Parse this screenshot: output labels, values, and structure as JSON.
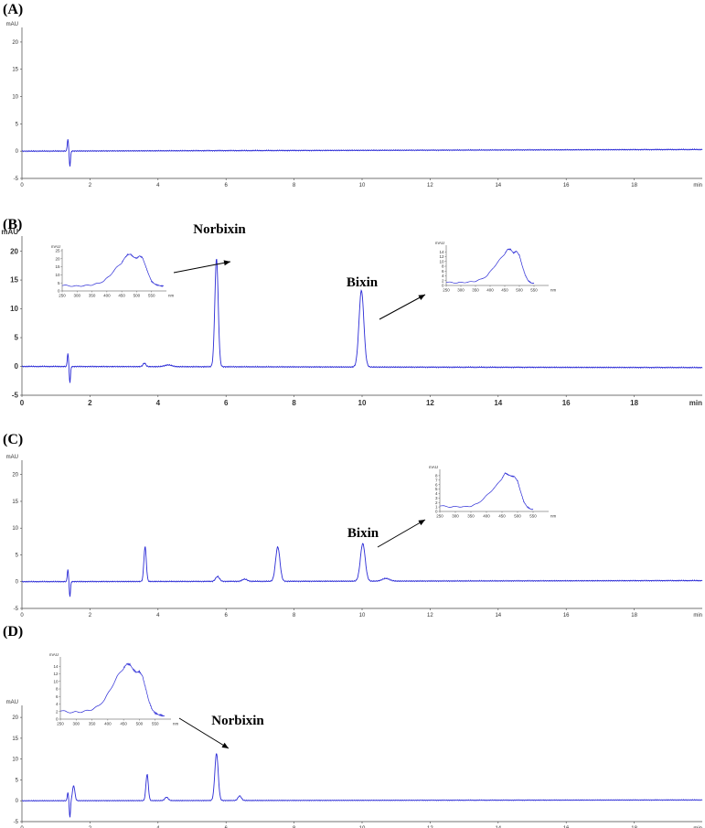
{
  "colors": {
    "trace": "#2b2bd6",
    "axis": "#444444",
    "text": "#000000"
  },
  "chart_data": [
    {
      "type": "line",
      "panel": "(A)",
      "xlabel": "min",
      "ylabel": "mAU",
      "xlim": [
        0,
        20
      ],
      "ylim": [
        -5,
        22
      ],
      "xticks": [
        0,
        2,
        4,
        6,
        8,
        10,
        12,
        14,
        16,
        18
      ],
      "yticks": [
        -5,
        0,
        5,
        10,
        15,
        20
      ],
      "peaks": [],
      "baseline": [
        [
          0,
          0
        ],
        [
          20,
          0.3
        ]
      ],
      "solvent_front": {
        "x": 1.35,
        "up": 2.2,
        "down": -2.8
      },
      "annotations": [],
      "insets": []
    },
    {
      "type": "line",
      "panel": "(B)",
      "xlabel": "min",
      "ylabel": "mAU",
      "xlim": [
        0,
        20
      ],
      "ylim": [
        -5,
        22
      ],
      "xticks": [
        0,
        2,
        4,
        6,
        8,
        10,
        12,
        14,
        16,
        18
      ],
      "yticks": [
        -5,
        0,
        5,
        10,
        15,
        20
      ],
      "baseline": [
        [
          0,
          0
        ],
        [
          20,
          -0.2
        ]
      ],
      "solvent_front": {
        "x": 1.35,
        "up": 2.3,
        "down": -2.8
      },
      "peaks": [
        {
          "rt": 3.6,
          "height": 0.6,
          "width": 0.06
        },
        {
          "rt": 4.3,
          "height": 0.3,
          "width": 0.15
        },
        {
          "rt": 5.72,
          "height": 18.8,
          "width": 0.07
        },
        {
          "rt": 9.98,
          "height": 13.3,
          "width": 0.1
        }
      ],
      "annotations": [
        {
          "text": "Norbixin",
          "x": 5.72,
          "y": 19.8
        },
        {
          "text": "Bixin",
          "x": 9.98,
          "y": 14.3
        }
      ],
      "insets": [
        {
          "type": "line",
          "xlabel": "nm",
          "ylabel": "mAU",
          "xlim": [
            250,
            600
          ],
          "ylim": [
            0,
            25
          ],
          "xticks": [
            250,
            300,
            350,
            400,
            450,
            500,
            550
          ],
          "yticks": [
            0,
            5,
            10,
            15,
            20,
            25
          ],
          "x": [
            250,
            270,
            290,
            310,
            330,
            350,
            370,
            390,
            410,
            430,
            450,
            460,
            470,
            480,
            490,
            500,
            510,
            520,
            530,
            540,
            550,
            560,
            570,
            580,
            590
          ],
          "y": [
            3.6,
            3.2,
            3.0,
            3.1,
            3.3,
            3.8,
            4.6,
            6.2,
            9.5,
            14.0,
            17.5,
            20.5,
            22.6,
            22.8,
            21.0,
            20.3,
            21.8,
            20.6,
            15.5,
            10.5,
            6.0,
            4.4,
            3.6,
            3.2,
            3.0
          ]
        },
        {
          "type": "line",
          "xlabel": "nm",
          "ylabel": "mAU",
          "xlim": [
            250,
            600
          ],
          "ylim": [
            0,
            16
          ],
          "xticks": [
            250,
            300,
            350,
            400,
            450,
            500,
            550
          ],
          "yticks": [
            0,
            2,
            4,
            6,
            8,
            10,
            12,
            14
          ],
          "x": [
            250,
            270,
            290,
            310,
            330,
            350,
            370,
            390,
            410,
            430,
            450,
            460,
            470,
            480,
            490,
            500,
            510,
            520,
            530,
            540,
            550
          ],
          "y": [
            1.4,
            1.2,
            1.1,
            1.3,
            1.4,
            1.8,
            2.6,
            4.1,
            7.2,
            10.3,
            13.2,
            15.1,
            15.0,
            13.5,
            14.3,
            12.5,
            8.1,
            4.3,
            2.0,
            1.1,
            0.8
          ]
        }
      ]
    },
    {
      "type": "line",
      "panel": "(C)",
      "xlabel": "min",
      "ylabel": "mAU",
      "xlim": [
        0,
        20
      ],
      "ylim": [
        -5,
        22
      ],
      "xticks": [
        0,
        2,
        4,
        6,
        8,
        10,
        12,
        14,
        16,
        18
      ],
      "yticks": [
        -5,
        0,
        5,
        10,
        15,
        20
      ],
      "baseline": [
        [
          0,
          0
        ],
        [
          20,
          0.2
        ]
      ],
      "solvent_front": {
        "x": 1.35,
        "up": 2.3,
        "down": -2.8
      },
      "peaks": [
        {
          "rt": 3.62,
          "height": 6.5,
          "width": 0.05
        },
        {
          "rt": 5.75,
          "height": 0.9,
          "width": 0.08
        },
        {
          "rt": 6.55,
          "height": 0.4,
          "width": 0.1
        },
        {
          "rt": 7.52,
          "height": 6.4,
          "width": 0.09
        },
        {
          "rt": 10.02,
          "height": 7.0,
          "width": 0.1
        },
        {
          "rt": 10.7,
          "height": 0.5,
          "width": 0.15
        }
      ],
      "annotations": [
        {
          "text": "Bixin",
          "x": 10.02,
          "y": 8.0
        }
      ],
      "insets": [
        {
          "type": "line",
          "xlabel": "nm",
          "ylabel": "mAU",
          "xlim": [
            250,
            600
          ],
          "ylim": [
            0,
            9
          ],
          "xticks": [
            250,
            300,
            350,
            400,
            450,
            500,
            550
          ],
          "yticks": [
            0,
            1,
            2,
            3,
            4,
            5,
            6,
            7,
            8
          ],
          "x": [
            250,
            270,
            290,
            310,
            330,
            350,
            370,
            390,
            410,
            430,
            450,
            460,
            470,
            480,
            490,
            500,
            510,
            520,
            530,
            540,
            550
          ],
          "y": [
            1.3,
            1.1,
            1.0,
            1.1,
            1.0,
            1.2,
            1.7,
            2.8,
            4.2,
            5.6,
            7.4,
            8.6,
            8.2,
            7.9,
            7.8,
            6.8,
            4.4,
            2.2,
            1.1,
            0.6,
            0.4
          ]
        }
      ]
    },
    {
      "type": "line",
      "panel": "(D)",
      "xlabel": "min",
      "ylabel": "mAU",
      "xlim": [
        0,
        20
      ],
      "ylim": [
        -5,
        22
      ],
      "xticks": [
        0,
        2,
        4,
        6,
        8,
        10,
        12,
        14,
        16,
        18
      ],
      "yticks": [
        -5,
        0,
        5,
        10,
        15,
        20
      ],
      "baseline": [
        [
          0,
          0
        ],
        [
          20,
          0.2
        ]
      ],
      "solvent_front": {
        "x": 1.35,
        "up": 2.0,
        "down": -4.0
      },
      "peaks": [
        {
          "rt": 1.52,
          "height": 3.6,
          "width": 0.05
        },
        {
          "rt": 3.68,
          "height": 6.3,
          "width": 0.05
        },
        {
          "rt": 4.25,
          "height": 0.8,
          "width": 0.07
        },
        {
          "rt": 5.72,
          "height": 11.3,
          "width": 0.07
        },
        {
          "rt": 6.4,
          "height": 1.1,
          "width": 0.07
        }
      ],
      "annotations": [
        {
          "text": "Norbixin",
          "x": 5.72,
          "y": 12.3
        }
      ],
      "insets": [
        {
          "type": "line",
          "xlabel": "nm",
          "ylabel": "mAU",
          "xlim": [
            250,
            600
          ],
          "ylim": [
            0,
            16
          ],
          "xticks": [
            250,
            300,
            350,
            400,
            450,
            500,
            550
          ],
          "yticks": [
            0,
            2,
            4,
            6,
            8,
            10,
            12,
            14
          ],
          "x": [
            250,
            270,
            290,
            310,
            330,
            350,
            370,
            390,
            410,
            430,
            450,
            460,
            470,
            480,
            490,
            500,
            510,
            520,
            530,
            540,
            550,
            560,
            570,
            580
          ],
          "y": [
            2.3,
            1.9,
            1.8,
            1.9,
            2.1,
            2.6,
            3.4,
            5.2,
            8.1,
            11.3,
            13.5,
            14.6,
            14.5,
            13.2,
            12.4,
            12.6,
            11.4,
            8.1,
            4.8,
            2.6,
            1.6,
            1.2,
            1.0,
            0.8
          ]
        }
      ]
    }
  ]
}
